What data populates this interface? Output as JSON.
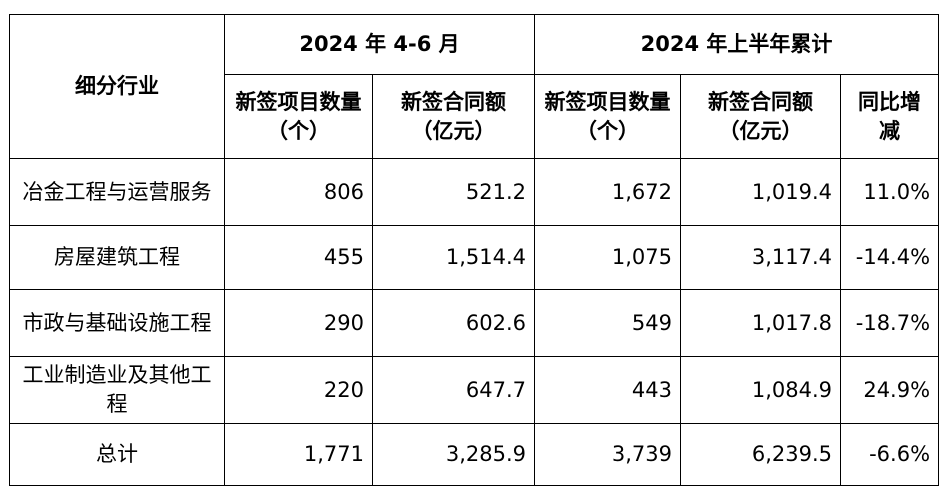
{
  "headers": {
    "industry": "细分行业",
    "q2_group": "2024 年 4-6 月",
    "h1_group": "2024 年上半年累计",
    "q2_count": "新签项目数量（个）",
    "q2_amount": "新签合同额（亿元）",
    "h1_count": "新签项目数量（个）",
    "h1_amount": "新签合同额（亿元）",
    "yoy": "同比增减"
  },
  "rows": [
    {
      "name": "冶金工程与运营服务",
      "q2_count": "806",
      "q2_amount": "521.2",
      "h1_count": "1,672",
      "h1_amount": "1,019.4",
      "yoy": "11.0%"
    },
    {
      "name": "房屋建筑工程",
      "q2_count": "455",
      "q2_amount": "1,514.4",
      "h1_count": "1,075",
      "h1_amount": "3,117.4",
      "yoy": "-14.4%"
    },
    {
      "name": "市政与基础设施工程",
      "q2_count": "290",
      "q2_amount": "602.6",
      "h1_count": "549",
      "h1_amount": "1,017.8",
      "yoy": "-18.7%"
    },
    {
      "name": "工业制造业及其他工程",
      "q2_count": "220",
      "q2_amount": "647.7",
      "h1_count": "443",
      "h1_amount": "1,084.9",
      "yoy": "24.9%"
    },
    {
      "name": "总计",
      "q2_count": "1,771",
      "q2_amount": "3,285.9",
      "h1_count": "3,739",
      "h1_amount": "6,239.5",
      "yoy": "-6.6%"
    }
  ]
}
